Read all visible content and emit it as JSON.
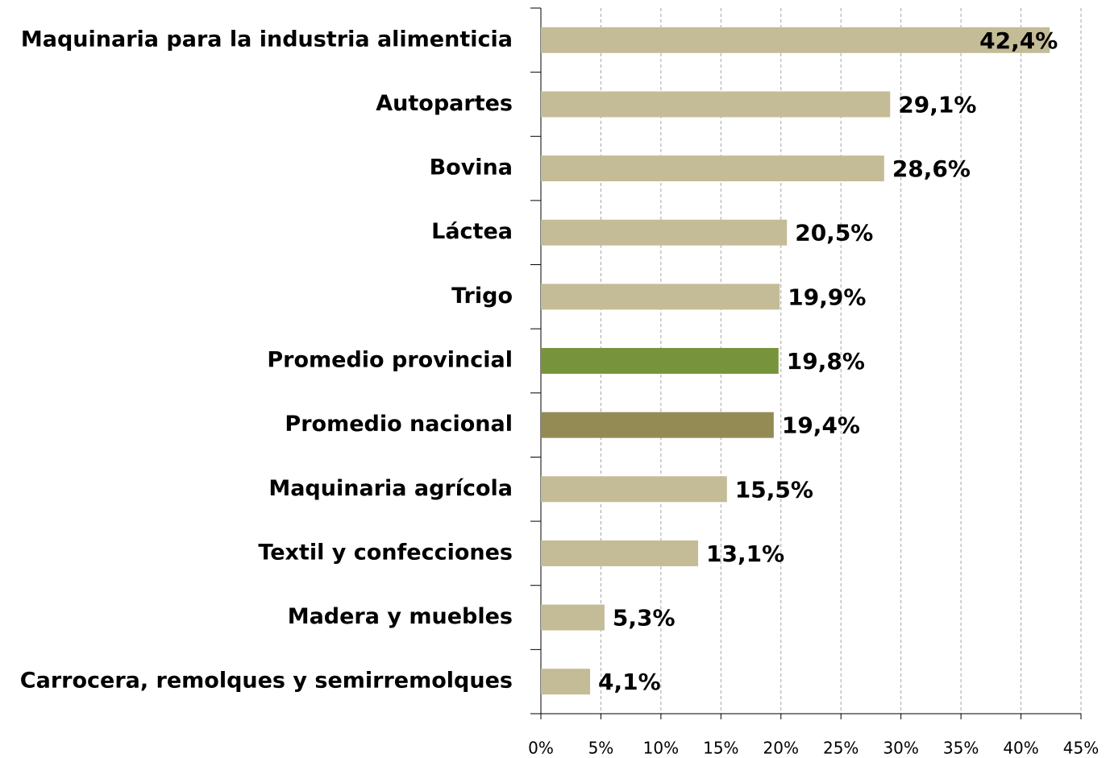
{
  "chart_data": {
    "type": "barh",
    "categories": [
      "Maquinaria para la industria alimenticia",
      "Autopartes",
      "Bovina",
      "Láctea",
      "Trigo",
      "Promedio provincial",
      "Promedio nacional",
      "Maquinaria agrícola",
      "Textil y confecciones",
      "Madera y muebles",
      "Carrocera, remolques y semirremolques"
    ],
    "values": [
      42.4,
      29.1,
      28.6,
      20.5,
      19.9,
      19.8,
      19.4,
      15.5,
      13.1,
      5.3,
      4.1
    ],
    "value_labels": [
      "42,4%",
      "29,1%",
      "28,6%",
      "20,5%",
      "19,9%",
      "19,8%",
      "19,4%",
      "15,5%",
      "13,1%",
      "5,3%",
      "4,1%"
    ],
    "colors": [
      "#c4bc96",
      "#c4bc96",
      "#c4bc96",
      "#c4bc96",
      "#c4bc96",
      "#77933c",
      "#948a54",
      "#c4bc96",
      "#c4bc96",
      "#c4bc96",
      "#c4bc96"
    ],
    "xlim": [
      0,
      45
    ],
    "xticks": [
      {
        "value": 0,
        "label": "0%"
      },
      {
        "value": 5,
        "label": "5%"
      },
      {
        "value": 10,
        "label": "10%"
      },
      {
        "value": 15,
        "label": "15%"
      },
      {
        "value": 20,
        "label": "20%"
      },
      {
        "value": 25,
        "label": "25%"
      },
      {
        "value": 30,
        "label": "30%"
      },
      {
        "value": 35,
        "label": "35%"
      },
      {
        "value": 40,
        "label": "40%"
      },
      {
        "value": 45,
        "label": "45%"
      }
    ],
    "grid": true
  }
}
